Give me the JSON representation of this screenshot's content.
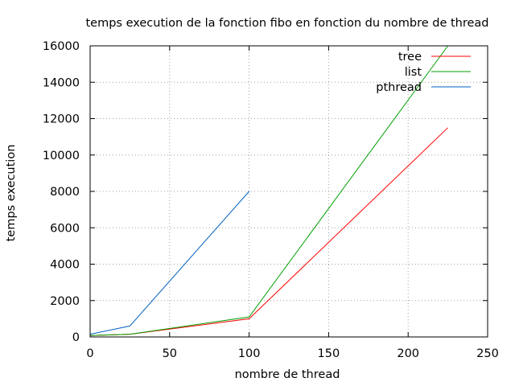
{
  "chart_data": {
    "type": "line",
    "title": "temps execution de la fonction fibo en fonction du nombre de thread",
    "xlabel": "nombre de thread",
    "ylabel": "temps execution",
    "xlim": [
      0,
      250
    ],
    "ylim": [
      0,
      16000
    ],
    "xticks": [
      0,
      50,
      100,
      150,
      200,
      250
    ],
    "yticks": [
      0,
      2000,
      4000,
      6000,
      8000,
      10000,
      12000,
      14000,
      16000
    ],
    "grid": true,
    "legend_position": "top-right",
    "series": [
      {
        "name": "tree",
        "color": "#ff0000",
        "points": [
          [
            0,
            80
          ],
          [
            25,
            150
          ],
          [
            100,
            1000
          ],
          [
            225,
            11500
          ]
        ]
      },
      {
        "name": "list",
        "color": "#00a000",
        "points": [
          [
            0,
            80
          ],
          [
            25,
            150
          ],
          [
            100,
            1100
          ],
          [
            225,
            16000
          ]
        ]
      },
      {
        "name": "pthread",
        "color": "#0060c0",
        "points": [
          [
            0,
            150
          ],
          [
            25,
            600
          ],
          [
            100,
            8000
          ]
        ]
      }
    ]
  }
}
